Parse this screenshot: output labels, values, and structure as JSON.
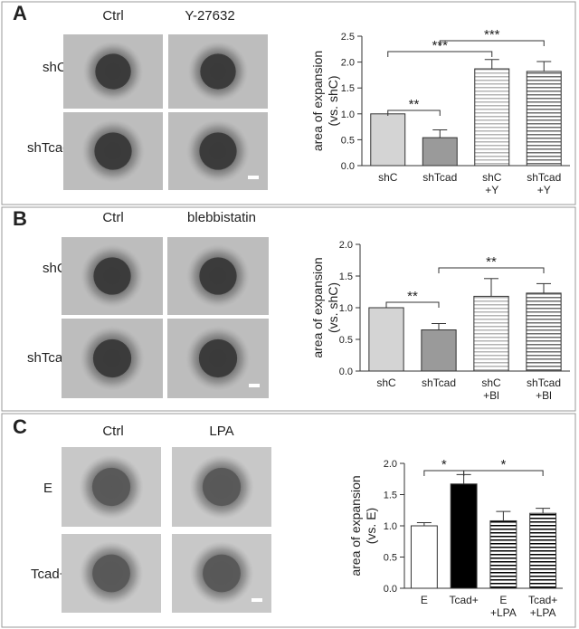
{
  "chart_data": [
    {
      "type": "bar",
      "panel_label": "A",
      "column_labels": [
        "Ctrl",
        "Y-27632"
      ],
      "row_labels": [
        "shC",
        "shTcad"
      ],
      "ylabel": [
        "area of expansion",
        "(vs. shC)"
      ],
      "categories": [
        "shC",
        "shTcad",
        "shC\n+Y",
        "shTcad\n+Y"
      ],
      "values": [
        1.0,
        0.54,
        1.87,
        1.82
      ],
      "errors": [
        null,
        0.15,
        0.18,
        0.19
      ],
      "colors": [
        "#d4d4d4",
        "#9a9a9a",
        "#b4b4b4",
        "#6e6e6e"
      ],
      "hatch": [
        false,
        false,
        true,
        true
      ],
      "ylim": [
        0,
        2.5
      ],
      "yticks": [
        {
          "value": 0,
          "label": "0.0"
        },
        {
          "value": 0.5,
          "label": "0.5"
        },
        {
          "value": 1,
          "label": "1.0"
        },
        {
          "value": 1.5,
          "label": "1.5"
        },
        {
          "value": 2,
          "label": "2.0"
        },
        {
          "value": 2.5,
          "label": "2.5"
        }
      ],
      "annotations": [
        {
          "text": "**",
          "from": 0,
          "to": 1
        },
        {
          "text": "***",
          "from": 0,
          "to": 2
        },
        {
          "text": "***",
          "from": 1,
          "to": 3
        }
      ]
    },
    {
      "type": "bar",
      "panel_label": "B",
      "column_labels": [
        "Ctrl",
        "blebbistatin"
      ],
      "row_labels": [
        "shC",
        "shTcad"
      ],
      "ylabel": [
        "area of expansion",
        "(vs. shC)"
      ],
      "categories": [
        "shC",
        "shTcad",
        "shC\n+Bl",
        "shTcad\n+Bl"
      ],
      "values": [
        1.0,
        0.65,
        1.18,
        1.23
      ],
      "errors": [
        null,
        0.1,
        0.28,
        0.15
      ],
      "colors": [
        "#d4d4d4",
        "#9a9a9a",
        "#b4b4b4",
        "#6e6e6e"
      ],
      "hatch": [
        false,
        false,
        true,
        true
      ],
      "ylim": [
        0,
        2.0
      ],
      "yticks": [
        {
          "value": 0,
          "label": "0.0"
        },
        {
          "value": 0.5,
          "label": "0.5"
        },
        {
          "value": 1,
          "label": "1.0"
        },
        {
          "value": 1.5,
          "label": "1.5"
        },
        {
          "value": 2,
          "label": "2.0"
        }
      ],
      "annotations": [
        {
          "text": "**",
          "from": 0,
          "to": 1
        },
        {
          "text": "**",
          "from": 1,
          "to": 3
        }
      ]
    },
    {
      "type": "bar",
      "panel_label": "C",
      "column_labels": [
        "Ctrl",
        "LPA"
      ],
      "row_labels": [
        "E",
        "Tcad+"
      ],
      "ylabel": [
        "area of expansion",
        "(vs. E)"
      ],
      "categories": [
        "E",
        "Tcad+",
        "E\n+LPA",
        "Tcad+\n+LPA"
      ],
      "values": [
        1.0,
        1.67,
        1.08,
        1.2
      ],
      "errors": [
        0.05,
        0.15,
        0.15,
        0.08
      ],
      "colors": [
        "#ffffff",
        "#000000",
        "#000000",
        "#000000"
      ],
      "hatch": [
        false,
        false,
        true,
        true
      ],
      "ylim": [
        0,
        2.0
      ],
      "yticks": [
        {
          "value": 0,
          "label": "0.0"
        },
        {
          "value": 0.5,
          "label": "0.5"
        },
        {
          "value": 1,
          "label": "1.0"
        },
        {
          "value": 1.5,
          "label": "1.5"
        },
        {
          "value": 2,
          "label": "2.0"
        }
      ],
      "annotations": [
        {
          "text": "*",
          "from": 0,
          "to": 1
        },
        {
          "text": "*",
          "from": 1,
          "to": 3
        }
      ]
    }
  ]
}
